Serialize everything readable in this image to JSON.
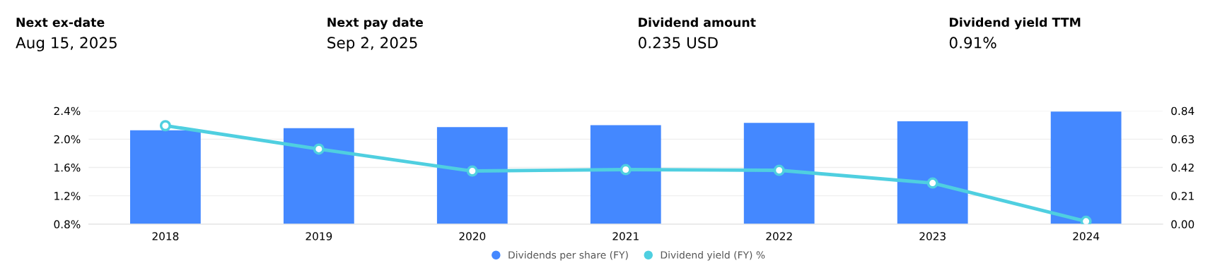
{
  "chart_data": {
    "type": "bar",
    "annotations": [
      "Next ex-date",
      "Aug 15, 2025",
      "Next pay date",
      "Sep 2, 2025",
      "Dividend amount",
      "0.235 USD",
      "Dividend yield TTM",
      "0.91%"
    ],
    "categories": [
      "2018",
      "2019",
      "2020",
      "2021",
      "2022",
      "2023",
      "2024"
    ],
    "series": [
      {
        "name": "Dividends per share (FY)",
        "axis": "y2",
        "color": "#4488ff",
        "values": [
          0.696,
          0.711,
          0.719,
          0.734,
          0.751,
          0.762,
          0.834
        ]
      },
      {
        "name": "Dividend yield (FY) %",
        "type": "line",
        "axis": "y",
        "color": "#4fcfe0",
        "values": [
          2.19,
          1.86,
          1.55,
          1.57,
          1.56,
          1.38,
          0.84
        ]
      }
    ],
    "ylim": [
      0.8,
      2.4
    ],
    "yticks": [
      {
        "value": 0.8,
        "label": "0.8%"
      },
      {
        "value": 1.2,
        "label": "1.2%"
      },
      {
        "value": 1.6,
        "label": "1.6%"
      },
      {
        "value": 2.0,
        "label": "2.0%"
      },
      {
        "value": 2.4,
        "label": "2.4%"
      }
    ],
    "y2lim": [
      0,
      0.84
    ],
    "y2ticks": [
      {
        "value": 0,
        "label": "0.00"
      },
      {
        "value": 0.21,
        "label": "0.21"
      },
      {
        "value": 0.42,
        "label": "0.42"
      },
      {
        "value": 0.63,
        "label": "0.63"
      },
      {
        "value": 0.84,
        "label": "0.84"
      }
    ],
    "grid": "y",
    "legend": "bottom",
    "marker": "circle",
    "line_style": "solid"
  }
}
